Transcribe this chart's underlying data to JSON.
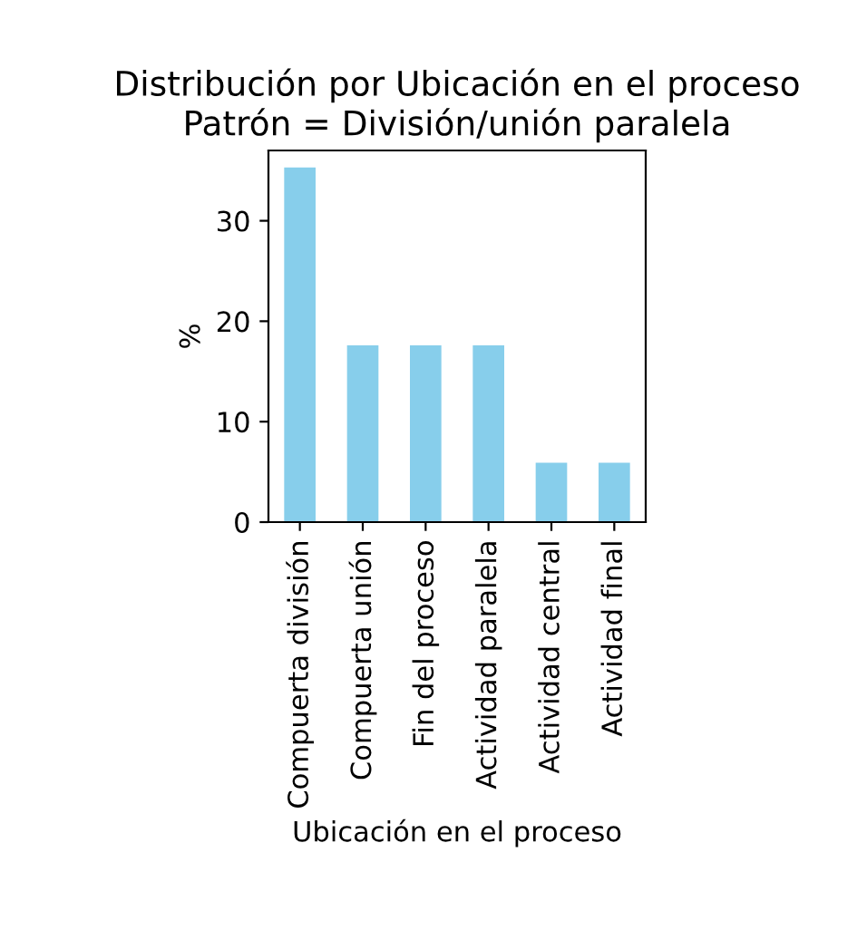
{
  "chart_data": {
    "type": "bar",
    "title": "Distribución por Ubicación en el proceso\nPatrón = División/unión paralela",
    "xlabel": "Ubicación en el proceso",
    "ylabel": "%",
    "categories": [
      "Compuerta división",
      "Compuerta unión",
      "Fin del proceso",
      "Actividad paralela",
      "Actividad central",
      "Actividad final"
    ],
    "values": [
      35.3,
      17.6,
      17.6,
      17.6,
      5.9,
      5.9
    ],
    "color": "#87ceeb",
    "ylim": [
      0,
      37
    ],
    "yticks": [
      0,
      10,
      20,
      30
    ],
    "grid": false,
    "legend": false
  }
}
